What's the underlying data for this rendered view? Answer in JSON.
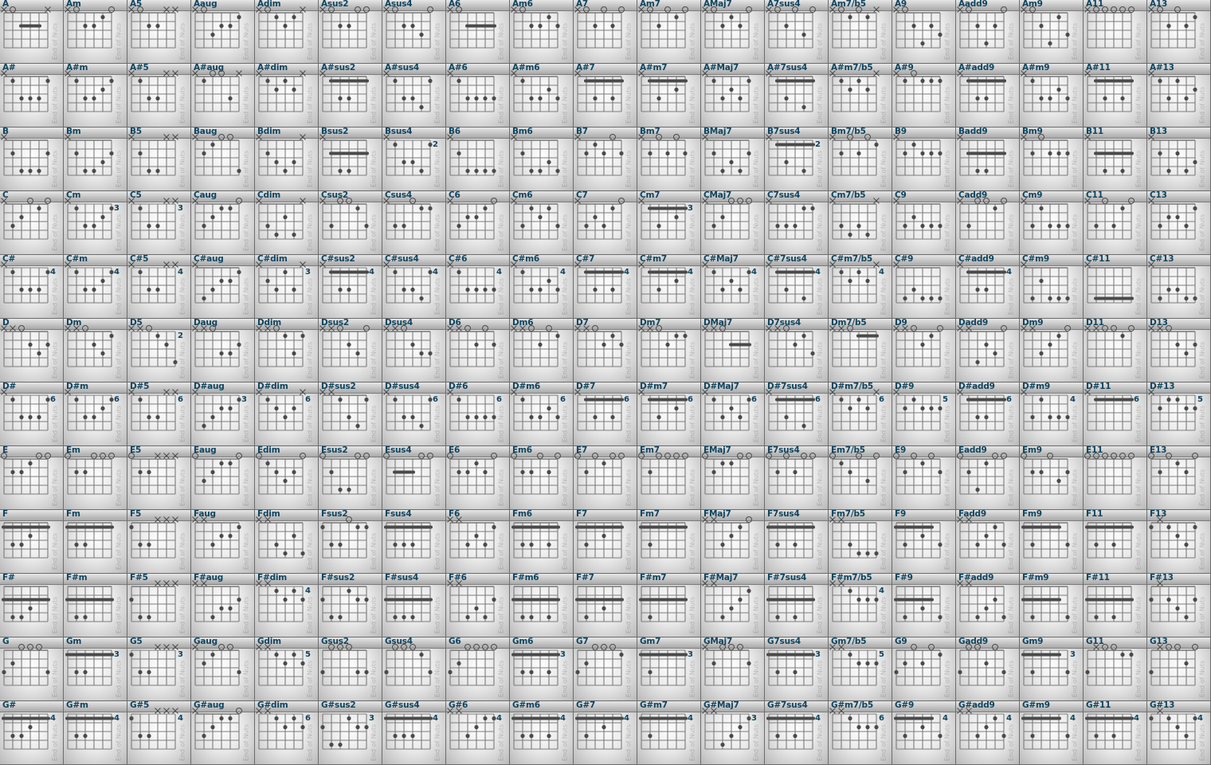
{
  "roots": [
    "A",
    "A#",
    "B",
    "C",
    "C#",
    "D",
    "D#",
    "E",
    "F",
    "F#",
    "G",
    "G#"
  ],
  "qualities": [
    "",
    "m",
    "5",
    "aug",
    "dim",
    "sus2",
    "sus4",
    "6",
    "m6",
    "7",
    "m7",
    "Maj7",
    "7sus4",
    "m7/b5",
    "9",
    "add9",
    "m9",
    "11",
    "13"
  ],
  "watermark_text": "End of Nuts",
  "colors": {
    "label": "#0f4560",
    "dot": "#4a4a4a",
    "string": "#6f6f6f"
  },
  "chords": {
    "A": [
      "x0222x",
      "x02210",
      "x022xx",
      "x03221",
      "x0121x",
      "x02200",
      "x02230",
      "x02222",
      "x02212",
      "x02020",
      "x02010",
      "x02120",
      "x02030",
      "x0101x",
      "x02423",
      "x02420",
      "x02413",
      "x00000",
      "x02021"
    ],
    "A#": [
      "x13331",
      "x13321",
      "x133xx",
      "x1003x",
      "x1212x",
      "x13311",
      "x13341",
      "x13333",
      "x13323",
      "x13131",
      "x13121",
      "x13231",
      "x13141",
      "x1212x",
      "x10111",
      "x13311",
      "x13323",
      "x13131",
      "x13132"
    ],
    "B": [
      "x24442",
      "x24432",
      "x244xx",
      "x21004",
      "x2343x",
      "x24422",
      "x24452",
      "x24444",
      "x24434",
      "x21202",
      "x20202",
      "x24342",
      "x24252",
      "x20201",
      "x21222",
      "x24422",
      "x20222",
      "x24242",
      "x24243"
    ],
    "C": [
      "x32010",
      "x35543",
      "x355xx",
      "x32110",
      "x3424x",
      "x30013",
      "x33011",
      "x32210",
      "x31213",
      "x32310",
      "x35343",
      "x32000",
      "x33311",
      "x3434x",
      "x32333",
      "x30010",
      "x31333",
      "x30310",
      "x32231"
    ],
    "C#": [
      "x46664",
      "x46654",
      "x466xx",
      "x43221",
      "x4535x",
      "x46644",
      "x46674",
      "x46666",
      "x46656",
      "x46464",
      "x46454",
      "x46564",
      "x46474",
      "x4545x",
      "x43444",
      "x46644",
      "x42444",
      "x44444",
      "x43344"
    ],
    "D": [
      "xx0232",
      "xx0231",
      "xx0235",
      "xx0332",
      "xx0131",
      "xx0230",
      "xx0233",
      "xx0202",
      "xx0201",
      "xx0212",
      "xx0211",
      "xx0222",
      "xx0213",
      "xx0111",
      "xx0210",
      "xx4230",
      "xx3210",
      "xx0010",
      "xx0232"
    ],
    "D#": [
      "x68886",
      "x68876",
      "x688xx",
      "x65443",
      "x6787x",
      "xx1341",
      "x68896",
      "x68888",
      "x68878",
      "x68686",
      "x68676",
      "x68786",
      "x68696",
      "x6767x",
      "x65666",
      "x68866",
      "x64666",
      "x66666",
      "x65566"
    ],
    "E": [
      "022100",
      "022000",
      "022xxx",
      "032110",
      "012320",
      "024400",
      "022200",
      "022120",
      "022020",
      "020100",
      "020000",
      "021100",
      "020200",
      "012030",
      "020102",
      "024100",
      "022032",
      "000000",
      "020120"
    ],
    "F": [
      "133211",
      "133111",
      "133xxx",
      "xx3221",
      "xx3424",
      "133011",
      "133311",
      "xx3231",
      "133131",
      "131211",
      "131111",
      "xx3210",
      "131311",
      "xx3444",
      "131213",
      "xx3213",
      "131113",
      "131311",
      "1x1231"
    ],
    "F#": [
      "244322",
      "244222",
      "244xxx",
      "xx4332",
      "xx4545",
      "244122",
      "244422",
      "xx4342",
      "244242",
      "242322",
      "242222",
      "xx4321",
      "242422",
      "xx4555",
      "242324",
      "xx4324",
      "242224",
      "242422",
      "2x2342"
    ],
    "G": [
      "320003",
      "355333",
      "355xxx",
      "x21003",
      "xx5656",
      "300033",
      "300013",
      "320000",
      "355353",
      "320001",
      "353333",
      "x20002",
      "353533",
      "xx5666",
      "320201",
      "300203",
      "353335",
      "3x0011",
      "3x0020"
    ],
    "G#": [
      "466544",
      "466444",
      "466xxx",
      "x32110",
      "xx6767",
      "466344",
      "466644",
      "xx6544",
      "466464",
      "464544",
      "464444",
      "xx6543",
      "464644",
      "xx6777",
      "464546",
      "xx6546",
      "464446",
      "464644",
      "4x4564"
    ]
  }
}
